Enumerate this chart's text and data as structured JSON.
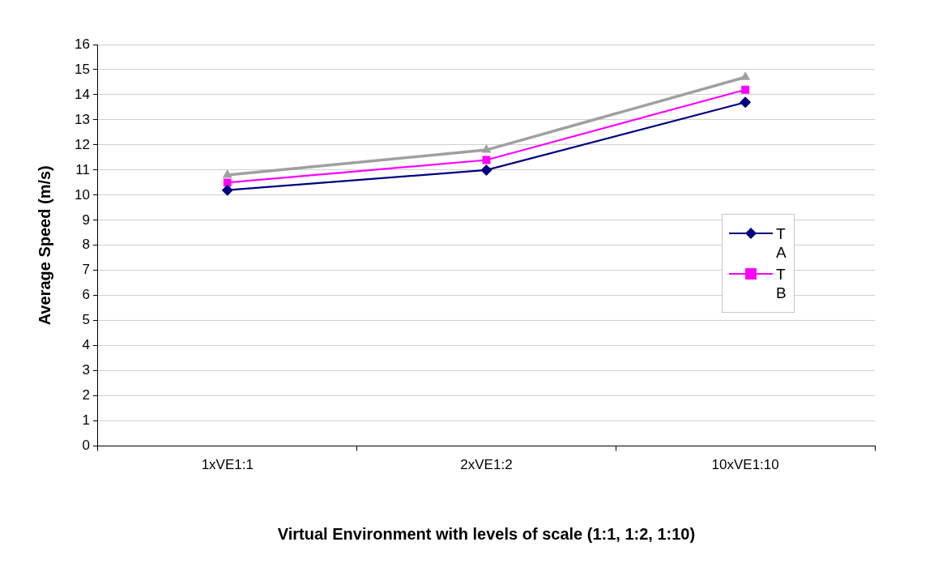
{
  "chart_data": {
    "type": "line",
    "xlabel": "Virtual Environment with levels of scale (1:1, 1:2, 1:10)",
    "ylabel": "Average Speed (m/s)",
    "categories": [
      "1xVE1:1",
      "2xVE1:2",
      "10xVE1:10"
    ],
    "series": [
      {
        "name": "T A",
        "color": "#000080",
        "marker": "diamond",
        "values": [
          10.2,
          11.0,
          13.7
        ]
      },
      {
        "name": "T B",
        "color": "#ff00ff",
        "marker": "square",
        "values": [
          10.5,
          11.4,
          14.2
        ]
      },
      {
        "color": "#a0a0a0",
        "marker": "triangle",
        "values": [
          10.8,
          11.8,
          14.7
        ]
      }
    ],
    "ylim": [
      0,
      16
    ],
    "yticks": [
      0,
      1,
      2,
      3,
      4,
      5,
      6,
      7,
      8,
      9,
      10,
      11,
      12,
      13,
      14,
      15,
      16
    ],
    "grid": "y",
    "legend": "right"
  }
}
